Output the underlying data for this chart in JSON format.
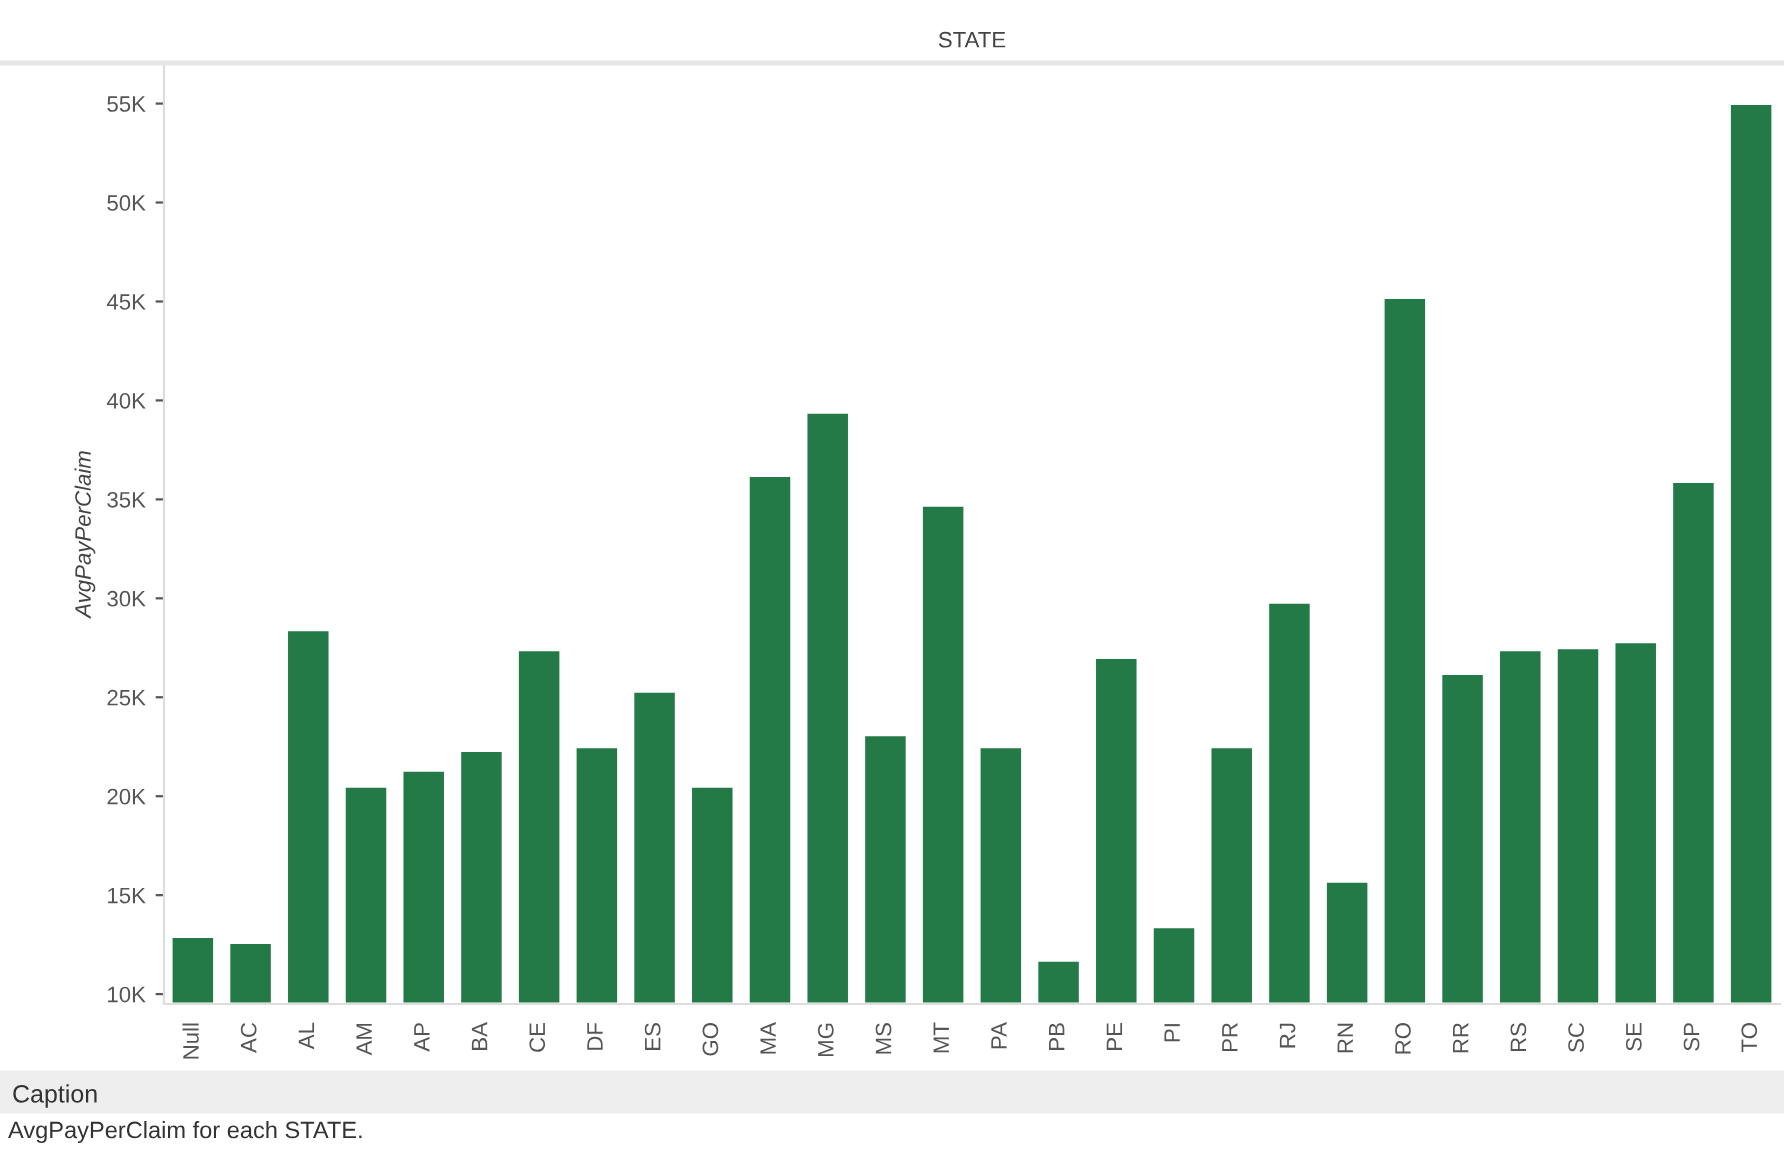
{
  "chart_data": {
    "type": "bar",
    "xlabel": "STATE",
    "ylabel": "AvgPayPerClaim",
    "categories": [
      "Null",
      "AC",
      "AL",
      "AM",
      "AP",
      "BA",
      "CE",
      "DF",
      "ES",
      "GO",
      "MA",
      "MG",
      "MS",
      "MT",
      "PA",
      "PB",
      "PE",
      "PI",
      "PR",
      "RJ",
      "RN",
      "RO",
      "RR",
      "RS",
      "SC",
      "SE",
      "SP",
      "TO"
    ],
    "values": [
      12900,
      12600,
      28400,
      20500,
      21300,
      22300,
      27400,
      22500,
      25300,
      20500,
      36200,
      39400,
      23100,
      34700,
      22500,
      11700,
      27000,
      13400,
      22500,
      29800,
      15700,
      45200,
      26200,
      27400,
      27500,
      27800,
      35900,
      55000
    ],
    "color": "#237a47",
    "ylim": [
      9500,
      57000
    ],
    "yticks": [
      {
        "value": 10000,
        "label": "10K"
      },
      {
        "value": 15000,
        "label": "15K"
      },
      {
        "value": 20000,
        "label": "20K"
      },
      {
        "value": 25000,
        "label": "25K"
      },
      {
        "value": 30000,
        "label": "30K"
      },
      {
        "value": 35000,
        "label": "35K"
      },
      {
        "value": 40000,
        "label": "40K"
      },
      {
        "value": 45000,
        "label": "45K"
      },
      {
        "value": 50000,
        "label": "50K"
      },
      {
        "value": 55000,
        "label": "55K"
      }
    ],
    "grid": false,
    "annotations": [
      "Caption",
      "AvgPayPerClaim for each STATE."
    ]
  }
}
